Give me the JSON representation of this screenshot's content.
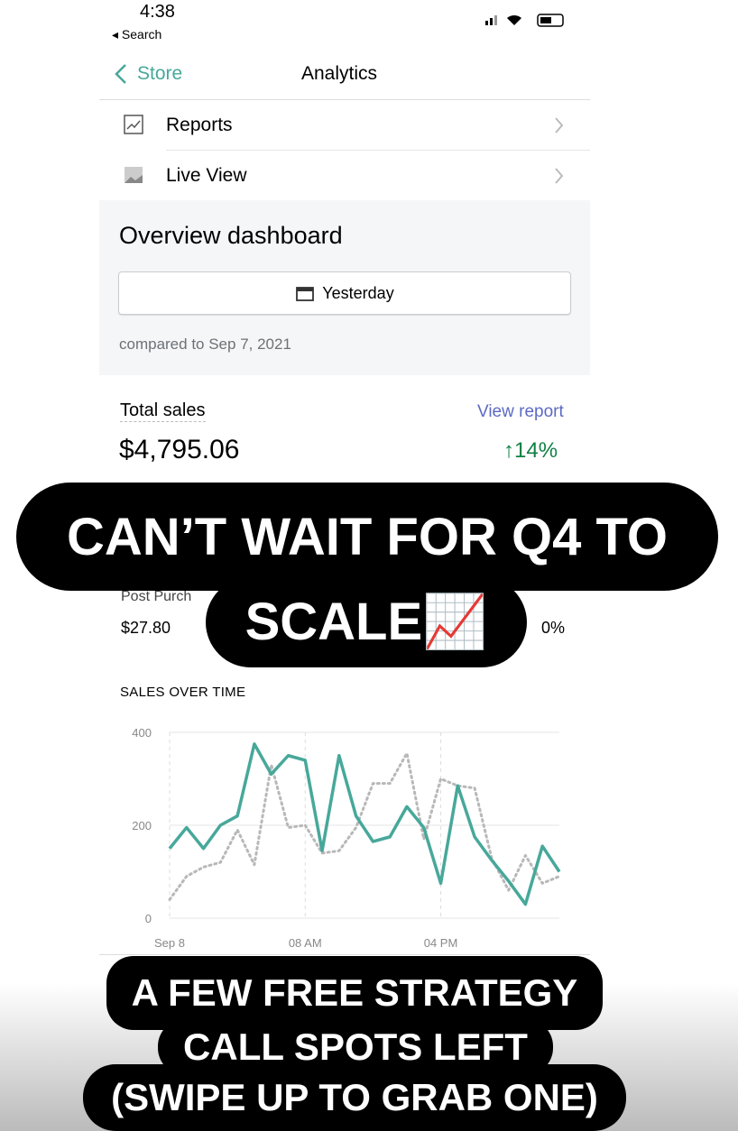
{
  "status_bar": {
    "time": "4:38",
    "back": "Search"
  },
  "nav": {
    "back": "Store",
    "title": "Analytics"
  },
  "menu": [
    {
      "label": "Reports"
    },
    {
      "label": "Live View"
    }
  ],
  "overview": {
    "title": "Overview dashboard",
    "date_button": "Yesterday",
    "compared": "compared to Sep 7, 2021"
  },
  "total_sales": {
    "label": "Total sales",
    "link": "View report",
    "value": "$4,795.06",
    "change": "14%"
  },
  "post_purchase": {
    "label": "Post Purch",
    "value": "$27.80",
    "change": "0%"
  },
  "chart_data": {
    "type": "line",
    "title": "SALES OVER TIME",
    "categories": [
      "Sep 8",
      null,
      null,
      null,
      null,
      null,
      null,
      null,
      "08 AM",
      null,
      null,
      null,
      null,
      null,
      null,
      null,
      "04 PM",
      null,
      null,
      null,
      null,
      null,
      null,
      null
    ],
    "series": [
      {
        "color": "#47a89a",
        "values": [
          150,
          195,
          150,
          200,
          220,
          375,
          310,
          350,
          340,
          145,
          350,
          220,
          165,
          175,
          240,
          195,
          75,
          285,
          175,
          125,
          80,
          30,
          155,
          100
        ]
      },
      {
        "color": "#b8b8b8",
        "dashed": true,
        "values": [
          40,
          90,
          110,
          120,
          190,
          115,
          330,
          195,
          200,
          140,
          145,
          195,
          290,
          290,
          355,
          170,
          300,
          285,
          280,
          130,
          60,
          135,
          75,
          90
        ]
      }
    ],
    "ylim": [
      0,
      400
    ],
    "yticks": [
      0,
      200,
      400
    ],
    "grid": true
  },
  "overlays": [
    "CAN’T WAIT FOR Q4 TO",
    "SCALE📈",
    "A FEW FREE STRATEGY",
    "CALL SPOTS LEFT",
    "(SWIPE UP TO GRAB ONE)"
  ]
}
